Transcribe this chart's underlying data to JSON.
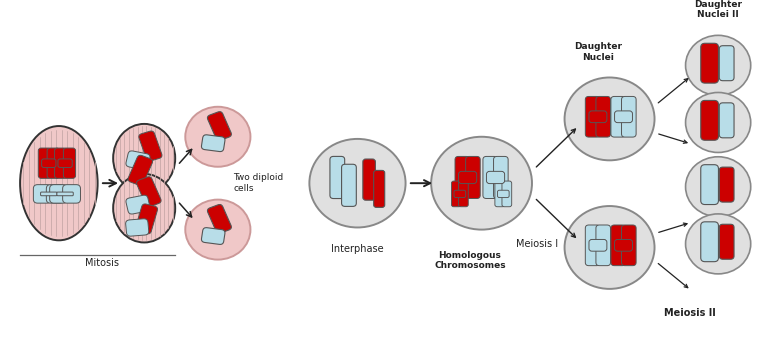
{
  "bg_color": "#ffffff",
  "fig_width": 7.77,
  "fig_height": 3.41,
  "dpi": 100,
  "cell_outline": "#555555",
  "cell_fill_pink": "#f0c8c8",
  "cell_fill_gray": "#e0e0e0",
  "chr_red": "#cc0000",
  "chr_blue": "#b8dde8",
  "chr_outline": "#555555",
  "stripe_color": "#c8a8a8",
  "arrow_color": "#222222",
  "text_color": "#222222",
  "labels": {
    "mitosis": "Mitosis",
    "two_diploid": "Two diploid\ncells",
    "interphase": "Interphase",
    "homologous": "Homologous\nChromosomes",
    "meiosis1": "Meiosis I",
    "meiosis2": "Meiosis II",
    "daughter_nuclei": "Daughter\nNuclei",
    "daughter_nuclei2": "Daughter\nNuclei II"
  }
}
